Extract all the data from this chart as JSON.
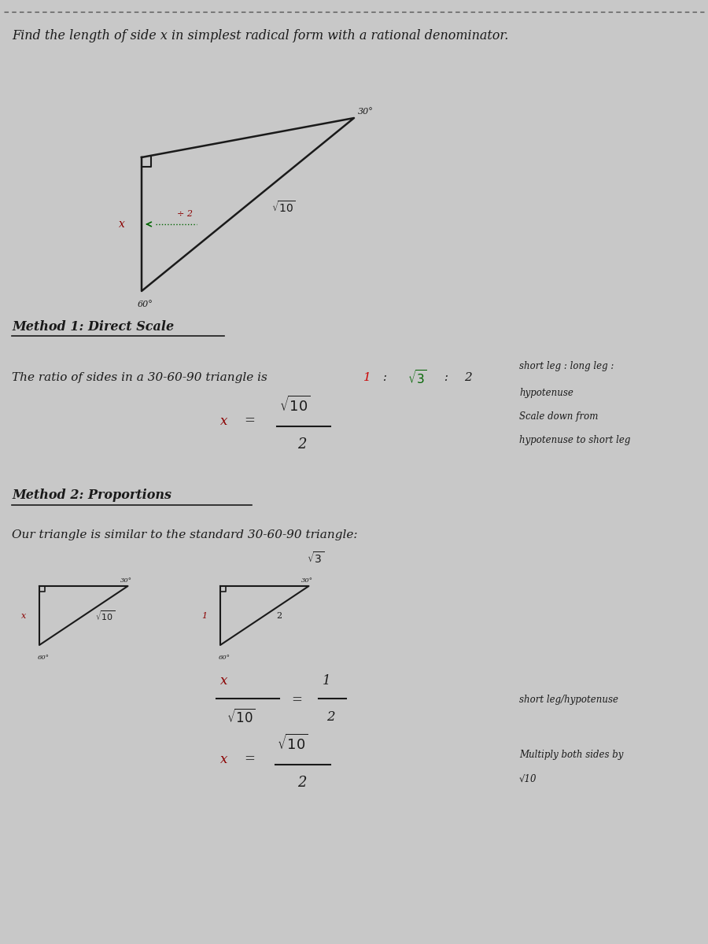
{
  "title": "Find the length of side x in simplest radical form with a rational denominator.",
  "bg_color": "#c8c8c8",
  "border_color": "#888888",
  "text_color": "#1a1a1a",
  "method1_title": "Method 1: Direct Scale",
  "ratio_text_pre": "The ratio of sides in a 30-60-90 triangle is ",
  "ratio_1": "1",
  "ratio_colon1": " : ",
  "ratio_sqrt3": "√3",
  "ratio_colon2": " : ",
  "ratio_2": "2",
  "right_note1_line1": "short leg : long leg :",
  "right_note1_line2": "hypotenuse",
  "formula1": "x = √10 / 2",
  "right_note2_line1": "Scale down from",
  "right_note2_line2": "hypotenuse to short leg",
  "method2_title": "Method 2: Proportions",
  "similar_text": "Our triangle is similar to the standard 30-60-90 triangle:",
  "proportion_eq": "x / √10 = 1 / 2",
  "right_note3": "short leg/hypotenuse",
  "formula2": "x = √10 / 2",
  "right_note4_line1": "Multiply both sides by",
  "right_note4_line2": "√10"
}
